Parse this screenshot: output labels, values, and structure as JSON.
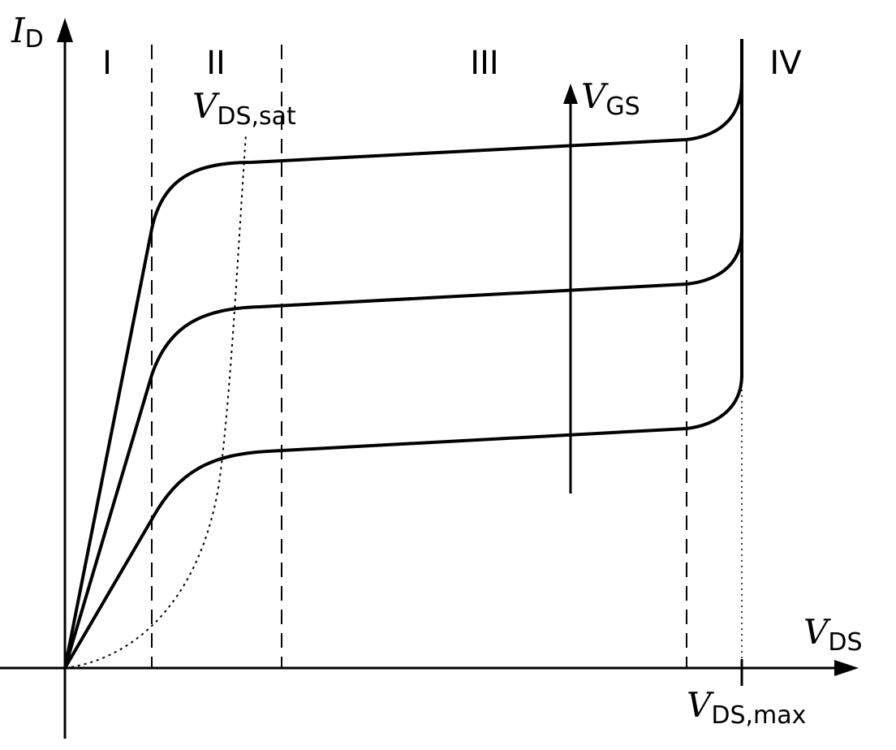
{
  "axes": {
    "y_symbol": "I",
    "y_subscript": "D",
    "x_symbol": "V",
    "x_subscript": "DS"
  },
  "regions": [
    "I",
    "II",
    "III",
    "IV"
  ],
  "saturation_label": {
    "symbol": "V",
    "subscript": "DS,sat"
  },
  "gate_label": {
    "symbol": "V",
    "subscript": "GS"
  },
  "vmax_label": {
    "symbol": "V",
    "subscript": "DS,max"
  },
  "colors": {
    "ink": "#000000",
    "background": "#ffffff"
  },
  "curve_count": 3
}
